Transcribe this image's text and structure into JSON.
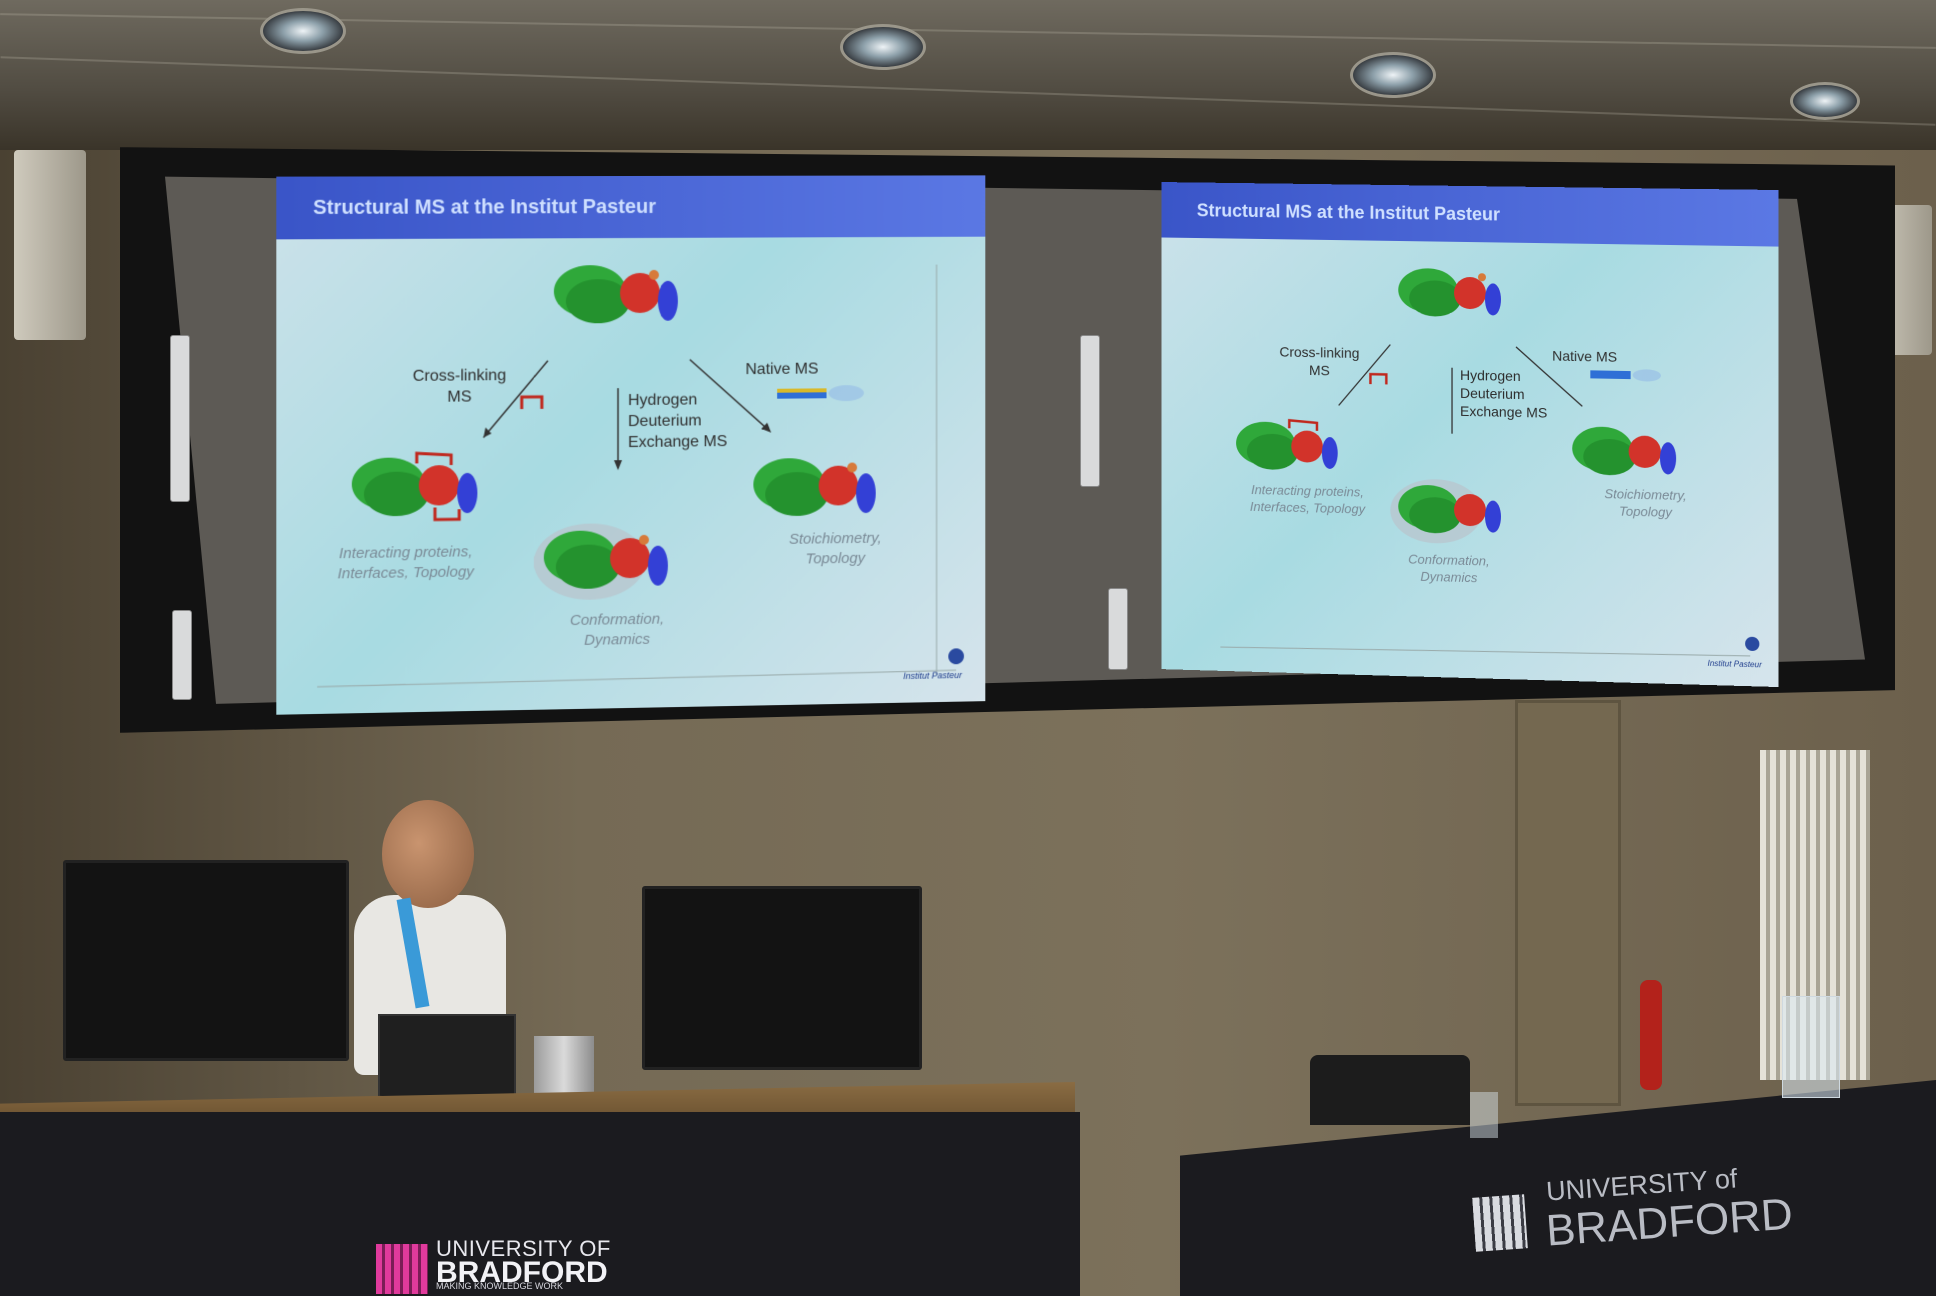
{
  "slides": [
    {
      "header": "Structural MS at the Institut Pasteur",
      "labels": {
        "cross_linking": "Cross-linking\nMS",
        "hdx": "Hydrogen\nDeuterium\nExchange MS",
        "native": "Native MS",
        "interacting": "Interacting proteins,\nInterfaces, Topology",
        "conformation": "Conformation,\nDynamics",
        "stoichiometry": "Stoichiometry,\nTopology"
      },
      "logo": "Institut Pasteur"
    },
    {
      "header": "Structural MS at the Institut Pasteur",
      "labels": {
        "cross_linking": "Cross-linking\nMS",
        "hdx": "Hydrogen\nDeuterium\nExchange MS",
        "native": "Native MS",
        "interacting": "Interacting proteins,\nInterfaces, Topology",
        "conformation": "Conformation,\nDynamics",
        "stoichiometry": "Stoichiometry,\nTopology"
      },
      "logo": "Institut Pasteur"
    }
  ],
  "protein_subunits": [
    "a",
    "b",
    "c"
  ],
  "desk_logo_left": {
    "line1": "UNIVERSITY OF",
    "line2": "BRADFORD",
    "tagline": "MAKING KNOWLEDGE WORK"
  },
  "desk_logo_right": {
    "line1": "UNIVERSITY of",
    "line2": "BRADFORD"
  },
  "colors": {
    "slide_header": "#3a55c8",
    "slide_bg": "#a8dbe2",
    "subunit_a": "#2fa83a",
    "subunit_b": "#d2332a",
    "subunit_c": "#3340d6",
    "crosslink": "#c0281e",
    "desk_cloth": "#1b1b1f",
    "brand_left": "#e03a9c"
  }
}
